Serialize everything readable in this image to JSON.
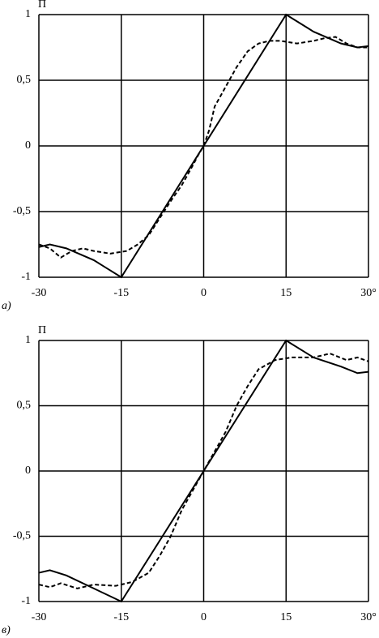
{
  "chart_data": [
    {
      "type": "line",
      "ylabel": "П",
      "annotation": "а)",
      "xlim": [
        -30,
        30
      ],
      "xticks": [
        -30,
        -15,
        0,
        15,
        {
          "value": 30,
          "label": "30°"
        }
      ],
      "ylim": [
        -1,
        1
      ],
      "yticks": [
        -1,
        {
          "value": -0.5,
          "label": "-0,5"
        },
        0,
        {
          "value": 0.5,
          "label": "0,5"
        },
        1
      ],
      "grid": true,
      "series": [
        {
          "color": "#000000",
          "dashed": false,
          "x": [
            -30,
            -28,
            -25,
            -20,
            -15,
            15,
            20,
            25,
            28,
            30
          ],
          "values": [
            -0.77,
            -0.75,
            -0.78,
            -0.87,
            -1,
            1,
            0.87,
            0.78,
            0.75,
            0.76
          ]
        },
        {
          "color": "#000000",
          "dashed": true,
          "x": [
            -30,
            -28,
            -26,
            -24,
            -22,
            -20,
            -17,
            -14,
            -12,
            -10,
            -8,
            -6,
            -4,
            -2,
            -1,
            0,
            1,
            2,
            4,
            6,
            8,
            10,
            12,
            14,
            17,
            20,
            22,
            24,
            26,
            28,
            30
          ],
          "values": [
            -0.75,
            -0.78,
            -0.85,
            -0.8,
            -0.78,
            -0.8,
            -0.82,
            -0.8,
            -0.75,
            -0.68,
            -0.55,
            -0.42,
            -0.3,
            -0.15,
            -0.07,
            0,
            0.12,
            0.3,
            0.45,
            0.6,
            0.72,
            0.78,
            0.8,
            0.8,
            0.78,
            0.8,
            0.82,
            0.83,
            0.78,
            0.75,
            0.75
          ]
        }
      ]
    },
    {
      "type": "line",
      "ylabel": "П",
      "annotation": "в)",
      "xlim": [
        -30,
        30
      ],
      "xticks": [
        -30,
        -15,
        0,
        15,
        {
          "value": 30,
          "label": "30°"
        }
      ],
      "ylim": [
        -1,
        1
      ],
      "yticks": [
        -1,
        {
          "value": -0.5,
          "label": "-0,5"
        },
        0,
        {
          "value": 0.5,
          "label": "0,5"
        },
        1
      ],
      "grid": true,
      "series": [
        {
          "color": "#000000",
          "dashed": false,
          "x": [
            -30,
            -28,
            -25,
            -20,
            -15,
            15,
            20,
            25,
            28,
            30
          ],
          "values": [
            -0.78,
            -0.76,
            -0.8,
            -0.9,
            -1,
            1,
            0.87,
            0.8,
            0.75,
            0.76
          ]
        },
        {
          "color": "#000000",
          "dashed": true,
          "x": [
            -30,
            -28,
            -26,
            -23,
            -20,
            -16,
            -13,
            -10,
            -8,
            -6,
            -4,
            -2,
            0,
            2,
            4,
            6,
            8,
            10,
            13,
            16,
            20,
            23,
            26,
            28,
            30
          ],
          "values": [
            -0.87,
            -0.89,
            -0.86,
            -0.9,
            -0.87,
            -0.88,
            -0.85,
            -0.78,
            -0.65,
            -0.5,
            -0.3,
            -0.15,
            0,
            0.15,
            0.3,
            0.5,
            0.65,
            0.78,
            0.85,
            0.87,
            0.87,
            0.9,
            0.85,
            0.87,
            0.84
          ]
        }
      ]
    }
  ]
}
